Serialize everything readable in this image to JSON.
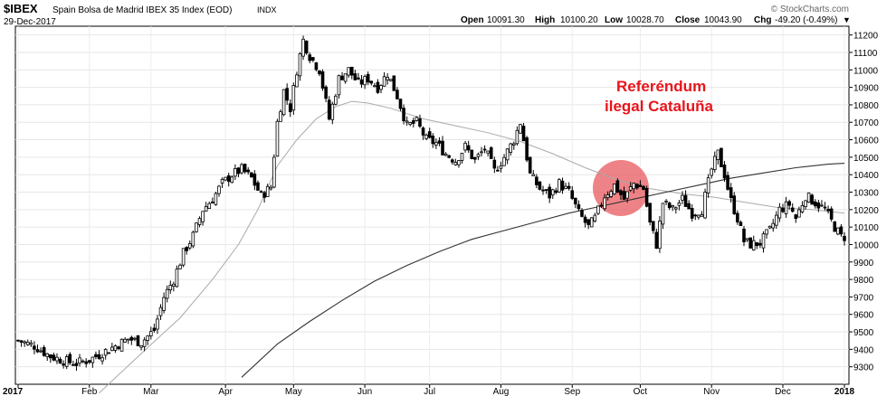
{
  "header": {
    "symbol": "$IBEX",
    "name": "Spain Bolsa de Madrid IBEX 35 Index (EOD)",
    "exchange": "INDX",
    "date": "29-Dec-2017",
    "watermark": "© StockCharts.com",
    "open_label": "Open",
    "open_value": "10091.30",
    "high_label": "High",
    "high_value": "10100.20",
    "low_label": "Low",
    "low_value": "10028.70",
    "close_label": "Close",
    "close_value": "10043.90",
    "chg_label": "Chg",
    "chg_value": "-49.20 (-0.49%)",
    "chg_arrow": "▼"
  },
  "annotation": {
    "line1": "Referéndum",
    "line2": "ilegal Cataluña",
    "color": "#e8141c",
    "circle_color": "#e85a5f"
  },
  "chart_data": {
    "type": "line",
    "title": "Spain Bolsa de Madrid IBEX 35 Index (EOD)",
    "ylim": [
      9200,
      11250
    ],
    "yticks": [
      9300,
      9400,
      9500,
      9600,
      9700,
      9800,
      9900,
      10000,
      10100,
      10200,
      10300,
      10400,
      10500,
      10600,
      10700,
      10800,
      10900,
      11000,
      11100,
      11200
    ],
    "x_labels": [
      "2017",
      "Feb",
      "Mar",
      "Apr",
      "May",
      "Jun",
      "Jul",
      "Aug",
      "Sep",
      "Oct",
      "Nov",
      "Dec",
      "2018"
    ],
    "x_label_pos": [
      0,
      22,
      41,
      64,
      85,
      107,
      127,
      149,
      171,
      192,
      214,
      236,
      255
    ],
    "n_days": 255,
    "price": [
      [
        0,
        9450
      ],
      [
        5,
        9420
      ],
      [
        10,
        9360
      ],
      [
        15,
        9330
      ],
      [
        18,
        9320
      ],
      [
        22,
        9340
      ],
      [
        26,
        9380
      ],
      [
        30,
        9420
      ],
      [
        34,
        9460
      ],
      [
        38,
        9440
      ],
      [
        42,
        9510
      ],
      [
        45,
        9700
      ],
      [
        48,
        9800
      ],
      [
        51,
        9950
      ],
      [
        54,
        10050
      ],
      [
        57,
        10200
      ],
      [
        60,
        10260
      ],
      [
        63,
        10350
      ],
      [
        66,
        10400
      ],
      [
        69,
        10430
      ],
      [
        72,
        10380
      ],
      [
        75,
        10280
      ],
      [
        78,
        10330
      ],
      [
        80,
        10700
      ],
      [
        82,
        10880
      ],
      [
        84,
        10780
      ],
      [
        86,
        11000
      ],
      [
        88,
        11170
      ],
      [
        90,
        11080
      ],
      [
        93,
        11000
      ],
      [
        96,
        10720
      ],
      [
        99,
        10950
      ],
      [
        102,
        11000
      ],
      [
        105,
        10920
      ],
      [
        108,
        10950
      ],
      [
        111,
        10900
      ],
      [
        114,
        10980
      ],
      [
        117,
        10850
      ],
      [
        120,
        10680
      ],
      [
        123,
        10700
      ],
      [
        126,
        10600
      ],
      [
        129,
        10580
      ],
      [
        132,
        10520
      ],
      [
        135,
        10480
      ],
      [
        138,
        10560
      ],
      [
        141,
        10480
      ],
      [
        144,
        10550
      ],
      [
        147,
        10420
      ],
      [
        150,
        10500
      ],
      [
        153,
        10600
      ],
      [
        155,
        10700
      ],
      [
        158,
        10400
      ],
      [
        161,
        10320
      ],
      [
        164,
        10280
      ],
      [
        167,
        10350
      ],
      [
        170,
        10300
      ],
      [
        173,
        10180
      ],
      [
        176,
        10100
      ],
      [
        178,
        10150
      ],
      [
        181,
        10280
      ],
      [
        184,
        10340
      ],
      [
        187,
        10260
      ],
      [
        190,
        10350
      ],
      [
        193,
        10320
      ],
      [
        195,
        10120
      ],
      [
        197,
        10000
      ],
      [
        199,
        10240
      ],
      [
        202,
        10200
      ],
      [
        205,
        10260
      ],
      [
        208,
        10180
      ],
      [
        211,
        10200
      ],
      [
        214,
        10430
      ],
      [
        216,
        10520
      ],
      [
        218,
        10400
      ],
      [
        220,
        10250
      ],
      [
        222,
        10150
      ],
      [
        224,
        10020
      ],
      [
        226,
        10000
      ],
      [
        229,
        10010
      ],
      [
        232,
        10080
      ],
      [
        235,
        10200
      ],
      [
        238,
        10230
      ],
      [
        240,
        10150
      ],
      [
        243,
        10280
      ],
      [
        246,
        10240
      ],
      [
        249,
        10200
      ],
      [
        252,
        10100
      ],
      [
        254,
        10044
      ]
    ],
    "series": [
      {
        "name": "",
        "color": "#aaaaaa",
        "values": [
          [
            25,
            9150
          ],
          [
            40,
            9410
          ],
          [
            50,
            9580
          ],
          [
            60,
            9800
          ],
          [
            68,
            10000
          ],
          [
            74,
            10200
          ],
          [
            80,
            10450
          ],
          [
            86,
            10600
          ],
          [
            92,
            10720
          ],
          [
            98,
            10790
          ],
          [
            103,
            10820
          ],
          [
            108,
            10810
          ],
          [
            115,
            10780
          ],
          [
            125,
            10720
          ],
          [
            135,
            10680
          ],
          [
            145,
            10640
          ],
          [
            155,
            10590
          ],
          [
            165,
            10520
          ],
          [
            175,
            10440
          ],
          [
            185,
            10370
          ],
          [
            195,
            10320
          ],
          [
            205,
            10290
          ],
          [
            215,
            10270
          ],
          [
            225,
            10240
          ],
          [
            235,
            10210
          ],
          [
            245,
            10200
          ],
          [
            255,
            10180
          ]
        ]
      },
      {
        "name": "",
        "color": "#333333",
        "values": [
          [
            69,
            9240
          ],
          [
            80,
            9430
          ],
          [
            90,
            9560
          ],
          [
            100,
            9680
          ],
          [
            110,
            9790
          ],
          [
            120,
            9880
          ],
          [
            130,
            9960
          ],
          [
            140,
            10030
          ],
          [
            150,
            10080
          ],
          [
            160,
            10130
          ],
          [
            170,
            10180
          ],
          [
            180,
            10220
          ],
          [
            190,
            10260
          ],
          [
            200,
            10300
          ],
          [
            210,
            10340
          ],
          [
            220,
            10380
          ],
          [
            230,
            10410
          ],
          [
            240,
            10440
          ],
          [
            250,
            10460
          ],
          [
            255,
            10465
          ]
        ]
      }
    ]
  }
}
